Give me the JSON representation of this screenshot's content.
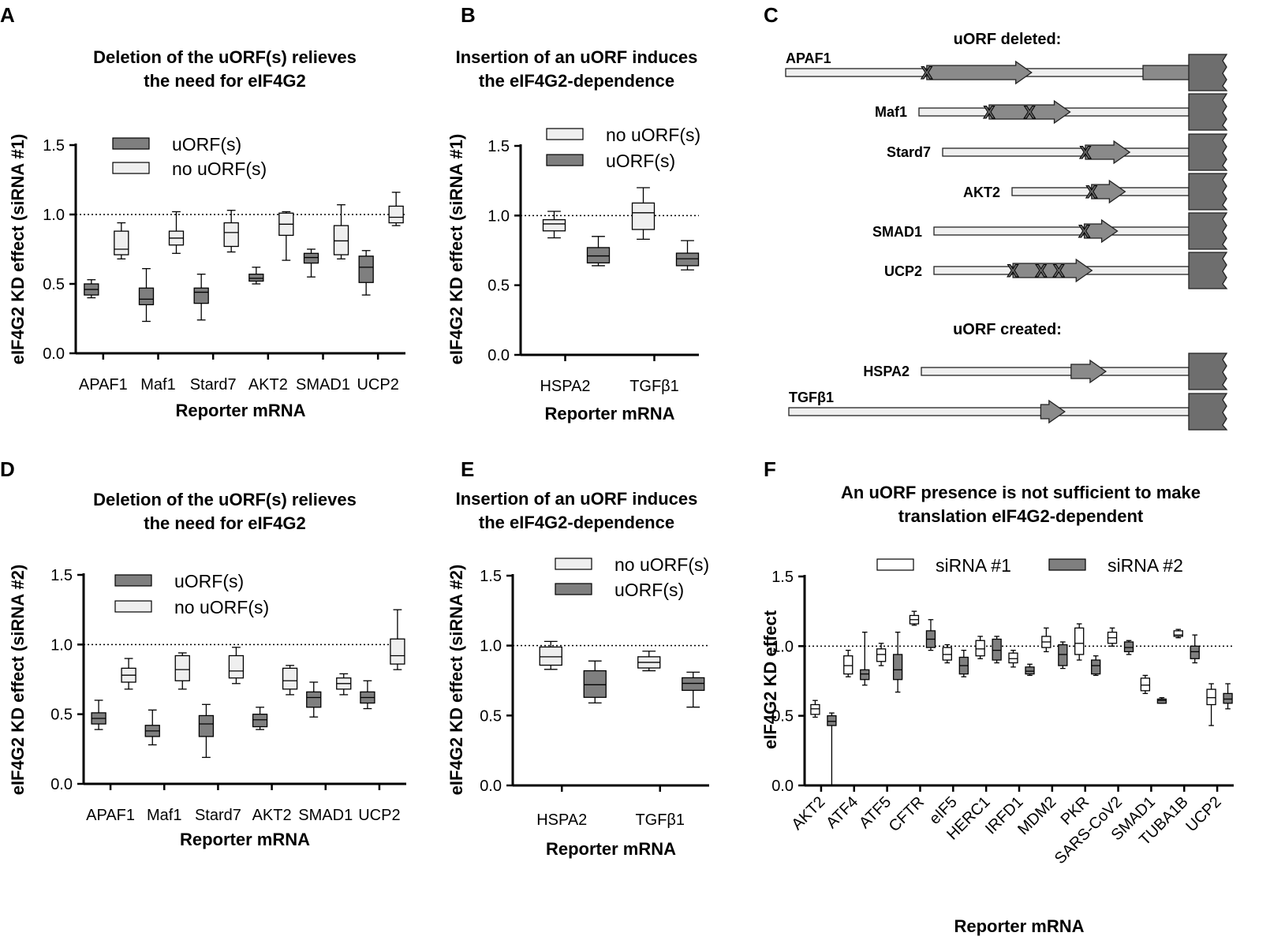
{
  "panel_labels": [
    "A",
    "B",
    "C",
    "D",
    "E",
    "F"
  ],
  "colors": {
    "light": "#efefef",
    "dark": "#7f7f7f",
    "axis": "#000000",
    "cds": "#6e6e6e"
  },
  "chart_data": [
    {
      "id": "A",
      "type": "box",
      "title": [
        "Deletion of the uORF(s) relieves",
        "the need for eIF4G2"
      ],
      "xlabel": "Reporter mRNA",
      "ylabel": "eIF4G2 KD effect (siRNA #1)",
      "ylim": [
        0,
        1.5
      ],
      "yticks": [
        "0.0",
        "0.5",
        "1.0",
        "1.5"
      ],
      "reference_line": 1.0,
      "legend": [
        "uORF(s)",
        "no uORF(s)"
      ],
      "categories": [
        "APAF1",
        "Maf1",
        "Stard7",
        "AKT2",
        "SMAD1",
        "UCP2"
      ],
      "series": [
        {
          "name": "uORF(s)",
          "color": "dark",
          "boxes": [
            [
              0.4,
              0.42,
              0.46,
              0.5,
              0.53
            ],
            [
              0.23,
              0.35,
              0.39,
              0.47,
              0.61
            ],
            [
              0.24,
              0.36,
              0.44,
              0.47,
              0.57
            ],
            [
              0.5,
              0.52,
              0.54,
              0.57,
              0.62
            ],
            [
              0.55,
              0.65,
              0.69,
              0.72,
              0.75
            ],
            [
              0.42,
              0.51,
              0.62,
              0.7,
              0.74
            ]
          ]
        },
        {
          "name": "no uORF(s)",
          "color": "light",
          "boxes": [
            [
              0.68,
              0.71,
              0.75,
              0.88,
              0.94
            ],
            [
              0.72,
              0.78,
              0.83,
              0.88,
              1.02
            ],
            [
              0.73,
              0.77,
              0.87,
              0.94,
              1.03
            ],
            [
              0.67,
              0.85,
              0.93,
              1.01,
              1.02
            ],
            [
              0.68,
              0.71,
              0.81,
              0.92,
              1.07
            ],
            [
              0.92,
              0.94,
              0.98,
              1.06,
              1.16
            ]
          ]
        }
      ]
    },
    {
      "id": "B",
      "type": "box",
      "title": [
        "Insertion of an uORF induces",
        "the eIF4G2-dependence"
      ],
      "xlabel": "Reporter mRNA",
      "ylabel": "eIF4G2 KD effect (siRNA #1)",
      "ylim": [
        0,
        1.5
      ],
      "yticks": [
        "0.0",
        "0.5",
        "1.0",
        "1.5"
      ],
      "reference_line": 1.0,
      "legend": [
        "no uORF(s)",
        "uORF(s)"
      ],
      "categories": [
        "HSPA2",
        "TGFβ1"
      ],
      "series": [
        {
          "name": "no uORF(s)",
          "color": "light",
          "boxes": [
            [
              0.84,
              0.89,
              0.94,
              0.97,
              1.03
            ],
            [
              0.83,
              0.9,
              1.02,
              1.09,
              1.2
            ]
          ]
        },
        {
          "name": "uORF(s)",
          "color": "dark",
          "boxes": [
            [
              0.64,
              0.66,
              0.71,
              0.77,
              0.85
            ],
            [
              0.61,
              0.64,
              0.69,
              0.73,
              0.82
            ]
          ]
        }
      ]
    },
    {
      "id": "D",
      "type": "box",
      "title": [
        "Deletion of the uORF(s) relieves",
        "the need for eIF4G2"
      ],
      "xlabel": "Reporter mRNA",
      "ylabel": "eIF4G2 KD effect (siRNA #2)",
      "ylim": [
        0,
        1.5
      ],
      "yticks": [
        "0.0",
        "0.5",
        "1.0",
        "1.5"
      ],
      "reference_line": 1.0,
      "legend": [
        "uORF(s)",
        "no uORF(s)"
      ],
      "categories": [
        "APAF1",
        "Maf1",
        "Stard7",
        "AKT2",
        "SMAD1",
        "UCP2"
      ],
      "series": [
        {
          "name": "uORF(s)",
          "color": "dark",
          "boxes": [
            [
              0.39,
              0.43,
              0.47,
              0.51,
              0.6
            ],
            [
              0.28,
              0.34,
              0.38,
              0.42,
              0.53
            ],
            [
              0.19,
              0.34,
              0.43,
              0.49,
              0.57
            ],
            [
              0.39,
              0.41,
              0.46,
              0.5,
              0.55
            ],
            [
              0.48,
              0.55,
              0.62,
              0.66,
              0.73
            ],
            [
              0.54,
              0.58,
              0.62,
              0.66,
              0.74
            ]
          ]
        },
        {
          "name": "no uORF(s)",
          "color": "light",
          "boxes": [
            [
              0.68,
              0.73,
              0.78,
              0.83,
              0.9
            ],
            [
              0.68,
              0.74,
              0.82,
              0.92,
              0.94
            ],
            [
              0.72,
              0.76,
              0.81,
              0.92,
              0.98
            ],
            [
              0.64,
              0.68,
              0.74,
              0.83,
              0.85
            ],
            [
              0.64,
              0.68,
              0.72,
              0.76,
              0.79
            ],
            [
              0.82,
              0.86,
              0.92,
              1.04,
              1.25
            ]
          ]
        }
      ]
    },
    {
      "id": "E",
      "type": "box",
      "title": [
        "Insertion of an uORF induces",
        "the eIF4G2-dependence"
      ],
      "xlabel": "Reporter mRNA",
      "ylabel": "eIF4G2 KD effect (siRNA #2)",
      "ylim": [
        0,
        1.5
      ],
      "yticks": [
        "0.0",
        "0.5",
        "1.0",
        "1.5"
      ],
      "reference_line": 1.0,
      "legend": [
        "no uORF(s)",
        "uORF(s)"
      ],
      "categories": [
        "HSPA2",
        "TGFβ1"
      ],
      "series": [
        {
          "name": "no uORF(s)",
          "color": "light",
          "boxes": [
            [
              0.83,
              0.86,
              0.92,
              0.99,
              1.03
            ],
            [
              0.82,
              0.84,
              0.88,
              0.92,
              0.96
            ]
          ]
        },
        {
          "name": "uORF(s)",
          "color": "dark",
          "boxes": [
            [
              0.59,
              0.63,
              0.72,
              0.82,
              0.89
            ],
            [
              0.56,
              0.68,
              0.73,
              0.77,
              0.81
            ]
          ]
        }
      ]
    },
    {
      "id": "F",
      "type": "box",
      "title": [
        "An uORF presence is not sufficient to make",
        "translation eIF4G2-dependent"
      ],
      "xlabel": "Reporter mRNA",
      "ylabel": "eIF4G2 KD effect",
      "ylim": [
        0,
        1.5
      ],
      "yticks": [
        "0.0",
        "0.5",
        "1.0",
        "1.5"
      ],
      "reference_line": 1.0,
      "legend": [
        "siRNA #1",
        "siRNA #2"
      ],
      "categories": [
        "AKT2",
        "ATF4",
        "ATF5",
        "CFTR",
        "eIF5",
        "HERC1",
        "IRFD1",
        "MDM2",
        "PKR",
        "SARS-CoV2",
        "SMAD1",
        "TUBA1B",
        "UCP2"
      ],
      "series": [
        {
          "name": "siRNA #1",
          "color": "white",
          "boxes": [
            [
              0.49,
              0.51,
              0.55,
              0.58,
              0.61
            ],
            [
              0.78,
              0.8,
              0.86,
              0.93,
              0.97
            ],
            [
              0.86,
              0.89,
              0.94,
              0.98,
              1.02
            ],
            [
              1.15,
              1.16,
              1.19,
              1.22,
              1.25
            ],
            [
              0.88,
              0.9,
              0.94,
              0.99,
              1.01
            ],
            [
              0.91,
              0.93,
              0.98,
              1.04,
              1.07
            ],
            [
              0.85,
              0.88,
              0.91,
              0.95,
              0.97
            ],
            [
              0.96,
              0.99,
              1.03,
              1.07,
              1.13
            ],
            [
              0.9,
              0.94,
              1.02,
              1.13,
              1.16
            ],
            [
              1.0,
              1.02,
              1.06,
              1.1,
              1.13
            ],
            [
              0.66,
              0.68,
              0.72,
              0.77,
              0.79
            ],
            [
              1.06,
              1.07,
              1.08,
              1.11,
              1.12
            ],
            [
              0.43,
              0.58,
              0.63,
              0.69,
              0.73
            ]
          ]
        },
        {
          "name": "siRNA #2",
          "color": "dark",
          "boxes": [
            [
              0.0,
              0.43,
              0.46,
              0.5,
              0.52
            ],
            [
              0.72,
              0.76,
              0.8,
              0.83,
              1.1
            ],
            [
              0.67,
              0.76,
              0.83,
              0.94,
              1.1
            ],
            [
              0.97,
              0.99,
              1.05,
              1.11,
              1.19
            ],
            [
              0.78,
              0.8,
              0.86,
              0.92,
              0.97
            ],
            [
              0.88,
              0.9,
              0.97,
              1.05,
              1.07
            ],
            [
              0.79,
              0.8,
              0.82,
              0.85,
              0.87
            ],
            [
              0.84,
              0.86,
              0.94,
              1.01,
              1.03
            ],
            [
              0.79,
              0.8,
              0.86,
              0.9,
              0.93
            ],
            [
              0.94,
              0.96,
              0.99,
              1.03,
              1.04
            ],
            [
              0.59,
              0.59,
              0.61,
              0.62,
              0.63
            ],
            [
              0.88,
              0.91,
              0.96,
              1.0,
              1.08
            ],
            [
              0.55,
              0.59,
              0.62,
              0.66,
              0.73
            ]
          ]
        }
      ]
    }
  ],
  "panel_c": {
    "header_deleted": "uORF deleted:",
    "header_created": "uORF created:",
    "deleted": [
      {
        "name": "APAF1",
        "uorf_rel": [
          0.35,
          0.61
        ],
        "marks": [
          0.35
        ]
      },
      {
        "name": "Maf1",
        "uorf_rel": [
          0.26,
          0.56
        ],
        "marks": [
          0.26,
          0.41
        ]
      },
      {
        "name": "Stard7",
        "uorf_rel": [
          0.58,
          0.76
        ],
        "marks": [
          0.58
        ]
      },
      {
        "name": "AKT2",
        "uorf_rel": [
          0.45,
          0.64
        ],
        "marks": [
          0.45
        ]
      },
      {
        "name": "SMAD1",
        "uorf_rel": [
          0.59,
          0.72
        ],
        "marks": [
          0.59
        ]
      },
      {
        "name": "UCP2",
        "uorf_rel": [
          0.31,
          0.62
        ],
        "marks": [
          0.31,
          0.42,
          0.49
        ]
      }
    ],
    "created": [
      {
        "name": "HSPA2",
        "uorf_rel": [
          0.56,
          0.69
        ],
        "marks": []
      },
      {
        "name": "TGFβ1",
        "uorf_rel": [
          0.63,
          0.69
        ],
        "marks": []
      }
    ]
  }
}
